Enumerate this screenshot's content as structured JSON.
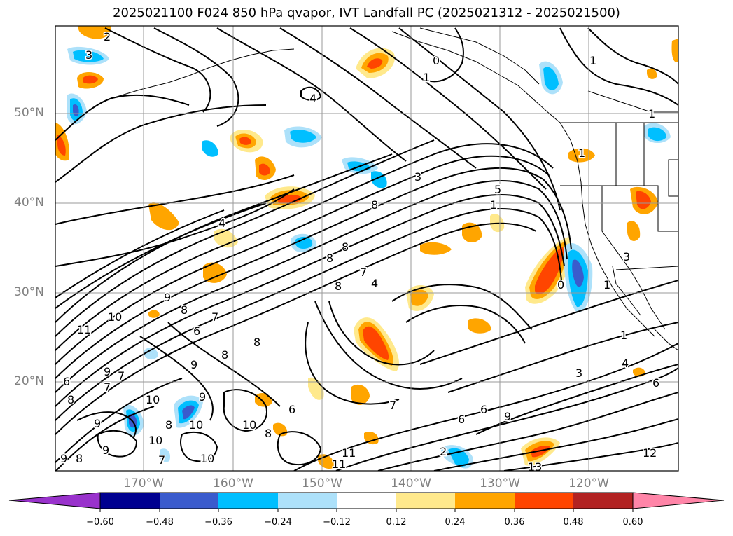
{
  "title": "2025021100 F024 850 hPa qvapor, IVT Landfall PC (2025021312 - 2025021500)",
  "lat_labels": [
    "50°N",
    "40°N",
    "30°N",
    "20°N"
  ],
  "lon_labels": [
    "170°W",
    "160°W",
    "150°W",
    "140°W",
    "130°W",
    "120°W"
  ],
  "contour_labels": [
    "3",
    "2",
    "0",
    "1",
    "1",
    "1",
    "1",
    "4",
    "3",
    "5",
    "8",
    "4",
    "8",
    "8",
    "8",
    "7",
    "4",
    "0",
    "1",
    "3",
    "1",
    "1",
    "3",
    "4",
    "6",
    "10",
    "9",
    "8",
    "7",
    "6",
    "11",
    "9",
    "8",
    "9",
    "7",
    "8",
    "6",
    "7",
    "8",
    "9",
    "10",
    "10",
    "8",
    "10",
    "9",
    "10",
    "9",
    "9",
    "8",
    "7",
    "8",
    "6",
    "6",
    "9",
    "10",
    "11",
    "7",
    "2",
    "6",
    "11",
    "13",
    "12"
  ],
  "colorbar": {
    "ticks": [
      "−0.60",
      "−0.48",
      "−0.36",
      "−0.24",
      "−0.12",
      "0.12",
      "0.24",
      "0.36",
      "0.48",
      "0.60"
    ],
    "colors": [
      "#9932CC",
      "#000090",
      "#3A5BCD",
      "#00BFFF",
      "#ADE1FA",
      "#FFFFFF",
      "#FFE98C",
      "#FFA500",
      "#FF4500",
      "#B22222",
      "#FF85A8"
    ]
  }
}
